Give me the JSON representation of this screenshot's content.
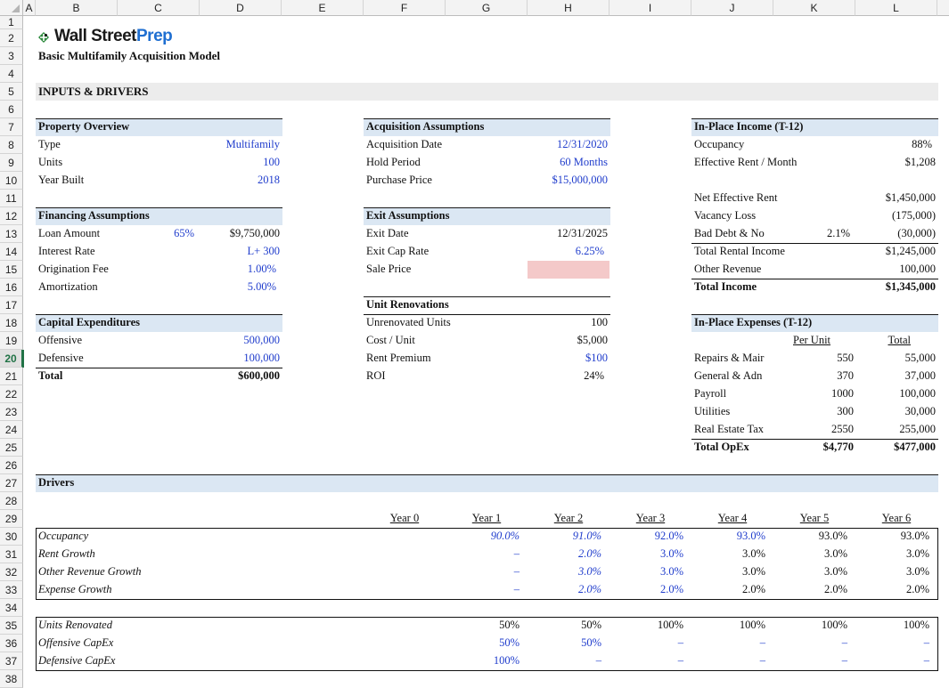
{
  "columns": [
    "A",
    "B",
    "C",
    "D",
    "E",
    "F",
    "G",
    "H",
    "I",
    "J",
    "K",
    "L"
  ],
  "rows": [
    "1",
    "2",
    "3",
    "4",
    "5",
    "6",
    "7",
    "8",
    "9",
    "10",
    "11",
    "12",
    "13",
    "14",
    "15",
    "16",
    "17",
    "18",
    "19",
    "20",
    "21",
    "22",
    "23",
    "24",
    "25",
    "26",
    "27",
    "28",
    "29",
    "30",
    "31",
    "32",
    "33",
    "34",
    "35",
    "36",
    "37",
    "38"
  ],
  "active_row": "20",
  "brand": {
    "wall_street": "Wall Street",
    "prep": "Prep",
    "colors": {
      "dark": "#1a1a1a",
      "blue": "#1f6fd1",
      "green": "#2e8b3e"
    }
  },
  "title": "Basic Multifamily Acquisition Model",
  "inputs_header": "INPUTS & DRIVERS",
  "property_overview": {
    "title": "Property Overview",
    "rows": [
      {
        "label": "Type",
        "value": "Multifamily"
      },
      {
        "label": "Units",
        "value": "100"
      },
      {
        "label": "Year Built",
        "value": "2018"
      }
    ]
  },
  "financing": {
    "title": "Financing Assumptions",
    "rows": [
      {
        "label": "Loan Amount",
        "pct": "65%",
        "value": "$9,750,000"
      },
      {
        "label": "Interest Rate",
        "value": "L+ 300"
      },
      {
        "label": "Origination Fee",
        "value": "1.00%"
      },
      {
        "label": "Amortization",
        "value": "5.00%"
      }
    ]
  },
  "capex": {
    "title": "Capital Expenditures",
    "rows": [
      {
        "label": "Offensive",
        "value": "500,000"
      },
      {
        "label": "Defensive",
        "value": "100,000"
      },
      {
        "label": "Total",
        "value": "$600,000"
      }
    ]
  },
  "acquisition": {
    "title": "Acquisition Assumptions",
    "rows": [
      {
        "label": "Acquisition Date",
        "value": "12/31/2020"
      },
      {
        "label": "Hold Period",
        "value": "60 Months"
      },
      {
        "label": "Purchase Price",
        "value": "$15,000,000"
      }
    ]
  },
  "exit": {
    "title": "Exit Assumptions",
    "rows": [
      {
        "label": "Exit Date",
        "value": "12/31/2025"
      },
      {
        "label": "Exit Cap Rate",
        "value": "6.25%"
      },
      {
        "label": "Sale Price",
        "value": ""
      }
    ]
  },
  "renovations": {
    "title": "Unit Renovations",
    "rows": [
      {
        "label": "Unrenovated Units",
        "value": "100"
      },
      {
        "label": "Cost / Unit",
        "value": "$5,000"
      },
      {
        "label": "Rent Premium",
        "value": "$100"
      },
      {
        "label": "ROI",
        "value": "24%"
      }
    ]
  },
  "income": {
    "title": "In-Place Income (T-12)",
    "rows": [
      {
        "label": "Occupancy",
        "value": "88%"
      },
      {
        "label": "Effective Rent / Month",
        "value": "$1,208"
      },
      {
        "label": "Net Effective Rent",
        "value": "$1,450,000"
      },
      {
        "label": "Vacancy Loss",
        "value": "(175,000)"
      },
      {
        "label": "Bad Debt & No",
        "pct": "2.1%",
        "value": "(30,000)"
      },
      {
        "label": "Total Rental Income",
        "value": "$1,245,000"
      },
      {
        "label": "Other Revenue",
        "value": "100,000"
      },
      {
        "label": "Total Income",
        "value": "$1,345,000"
      }
    ]
  },
  "expenses": {
    "title": "In-Place Expenses (T-12)",
    "per_unit_header": "Per Unit",
    "total_header": "Total",
    "rows": [
      {
        "label": "Repairs & Mair",
        "per_unit": "550",
        "total": "55,000"
      },
      {
        "label": "General & Adn",
        "per_unit": "370",
        "total": "37,000"
      },
      {
        "label": "Payroll",
        "per_unit": "1000",
        "total": "100,000"
      },
      {
        "label": "Utilities",
        "per_unit": "300",
        "total": "30,000"
      },
      {
        "label": "Real Estate Tax",
        "per_unit": "2550",
        "total": "255,000"
      },
      {
        "label": "Total OpEx",
        "per_unit": "$4,770",
        "total": "$477,000"
      }
    ]
  },
  "drivers": {
    "title": "Drivers",
    "years": [
      "Year 0",
      "Year 1",
      "Year 2",
      "Year 3",
      "Year 4",
      "Year 5",
      "Year 6"
    ],
    "growth_rows": [
      {
        "label": "Occupancy",
        "values": [
          "",
          "90.0%",
          "91.0%",
          "92.0%",
          "93.0%",
          "93.0%",
          "93.0%"
        ]
      },
      {
        "label": "Rent Growth",
        "values": [
          "",
          "–",
          "2.0%",
          "3.0%",
          "3.0%",
          "3.0%",
          "3.0%"
        ]
      },
      {
        "label": "Other Revenue Growth",
        "values": [
          "",
          "–",
          "3.0%",
          "3.0%",
          "3.0%",
          "3.0%",
          "3.0%"
        ]
      },
      {
        "label": "Expense Growth",
        "values": [
          "",
          "–",
          "2.0%",
          "2.0%",
          "2.0%",
          "2.0%",
          "2.0%"
        ]
      }
    ],
    "renovation_rows": [
      {
        "label": "Units Renovated",
        "values": [
          "",
          "50%",
          "50%",
          "100%",
          "100%",
          "100%",
          "100%"
        ]
      },
      {
        "label": "Offensive CapEx",
        "values": [
          "",
          "50%",
          "50%",
          "–",
          "–",
          "–",
          "–"
        ]
      },
      {
        "label": "Defensive CapEx",
        "values": [
          "",
          "100%",
          "–",
          "–",
          "–",
          "–",
          "–"
        ]
      }
    ]
  }
}
